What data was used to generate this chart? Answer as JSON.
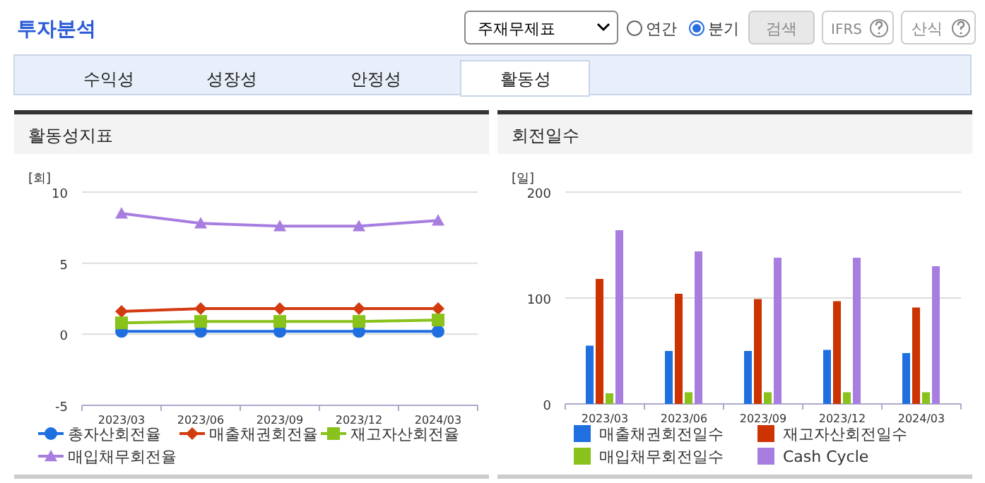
{
  "chart_data": [
    {
      "type": "other",
      "title": "투자분석",
      "annotations": [
        "주재무제표",
        "연간",
        "분기",
        "검색",
        "IFRS",
        "산식",
        "수익성",
        "성장성",
        "안정성",
        "활동성"
      ]
    },
    {
      "type": "line",
      "title": "활동성지표",
      "ylabel": "[회]",
      "categories": [
        "2023/03",
        "2023/06",
        "2023/09",
        "2023/12",
        "2024/03"
      ],
      "ylim": [
        -5,
        10
      ],
      "yticks": [
        -5,
        0,
        5,
        10
      ],
      "grid": "y",
      "legend": "bottom",
      "series": [
        {
          "name": "총자산회전율",
          "color": "#1f6fe0",
          "marker": "circle",
          "values": [
            0.2,
            0.2,
            0.2,
            0.2,
            0.2
          ]
        },
        {
          "name": "매출채권회전율",
          "color": "#d23a10",
          "marker": "diamond",
          "values": [
            1.6,
            1.8,
            1.8,
            1.8,
            1.8
          ]
        },
        {
          "name": "재고자산회전율",
          "color": "#88c21a",
          "marker": "square",
          "values": [
            0.8,
            0.9,
            0.9,
            0.9,
            1.0
          ]
        },
        {
          "name": "매입채무회전율",
          "color": "#a87de0",
          "marker": "triangle",
          "values": [
            8.5,
            7.8,
            7.6,
            7.6,
            8.0
          ]
        }
      ]
    },
    {
      "type": "bar",
      "title": "회전일수",
      "ylabel": "[일]",
      "categories": [
        "2023/03",
        "2023/06",
        "2023/09",
        "2023/12",
        "2024/03"
      ],
      "ylim": [
        0,
        200
      ],
      "yticks": [
        0,
        100,
        200
      ],
      "grid": "y",
      "legend": "bottom",
      "series": [
        {
          "name": "매출채권회전일수",
          "color": "#1f6fe0",
          "values": [
            55,
            50,
            50,
            51,
            48
          ]
        },
        {
          "name": "재고자산회전일수",
          "color": "#cc3300",
          "values": [
            118,
            104,
            99,
            97,
            91
          ]
        },
        {
          "name": "매입채무회전일수",
          "color": "#88c21a",
          "values": [
            10,
            11,
            11,
            11,
            11
          ]
        },
        {
          "name": "Cash Cycle",
          "color": "#a87de0",
          "values": [
            164,
            144,
            138,
            138,
            130
          ]
        }
      ]
    }
  ]
}
